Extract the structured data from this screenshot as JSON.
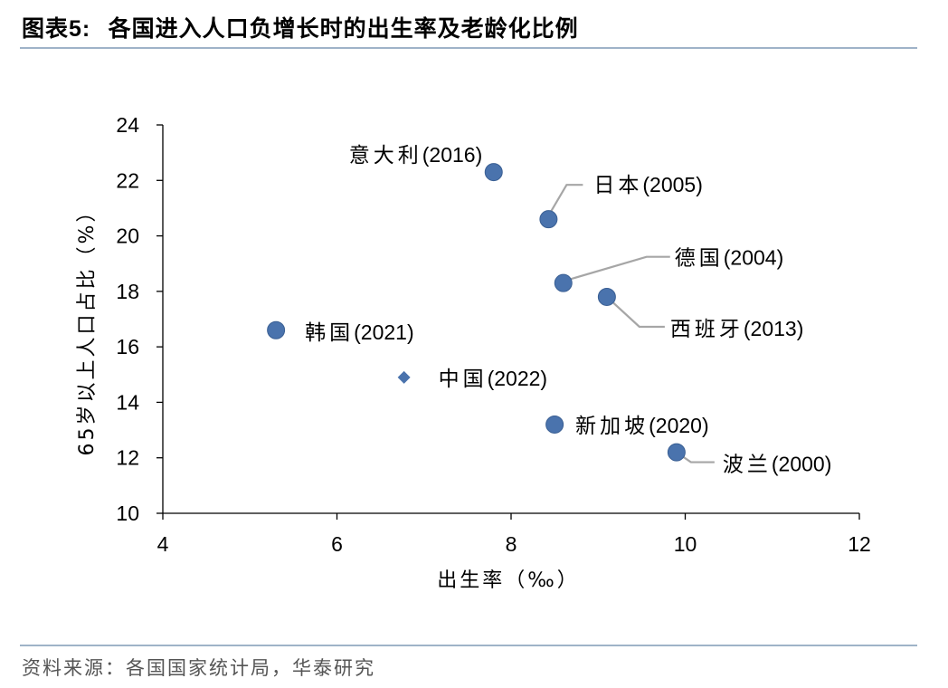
{
  "figure": {
    "title_prefix": "图表",
    "title_number": "5:",
    "title_text": "各国进入人口负增长时的出生率及老龄化比例",
    "source": "资料来源：各国国家统计局，华泰研究"
  },
  "chart_data": {
    "type": "scatter",
    "xlabel": "出生率（‰）",
    "ylabel": "65岁以上人口占比（%）",
    "xlim": [
      4,
      12
    ],
    "ylim": [
      10,
      24
    ],
    "xticks": [
      4,
      6,
      8,
      10,
      12
    ],
    "yticks": [
      10,
      12,
      14,
      16,
      18,
      20,
      22,
      24
    ],
    "grid": false,
    "colors": {
      "marker": "#4a73ad",
      "leader": "#a6a6a6",
      "axis": "#000000"
    },
    "points": [
      {
        "name": "意大利",
        "year": "2016",
        "label": "意大利(2016)",
        "x": 7.8,
        "y": 22.3,
        "marker": "circle",
        "leader": false
      },
      {
        "name": "日本",
        "year": "2005",
        "label": "日本(2005)",
        "x": 8.43,
        "y": 20.6,
        "marker": "circle",
        "leader": true
      },
      {
        "name": "德国",
        "year": "2004",
        "label": "德国(2004)",
        "x": 8.6,
        "y": 18.3,
        "marker": "circle",
        "leader": true
      },
      {
        "name": "西班牙",
        "year": "2013",
        "label": "西班牙(2013)",
        "x": 9.1,
        "y": 17.8,
        "marker": "circle",
        "leader": true
      },
      {
        "name": "韩国",
        "year": "2021",
        "label": "韩国(2021)",
        "x": 5.3,
        "y": 16.6,
        "marker": "circle",
        "leader": false
      },
      {
        "name": "中国",
        "year": "2022",
        "label": "中国(2022)",
        "x": 6.77,
        "y": 14.9,
        "marker": "diamond",
        "leader": false
      },
      {
        "name": "新加坡",
        "year": "2020",
        "label": "新加坡(2020)",
        "x": 8.5,
        "y": 13.2,
        "marker": "circle",
        "leader": false
      },
      {
        "name": "波兰",
        "year": "2000",
        "label": "波兰(2000)",
        "x": 9.9,
        "y": 12.2,
        "marker": "circle",
        "leader": true
      }
    ]
  }
}
